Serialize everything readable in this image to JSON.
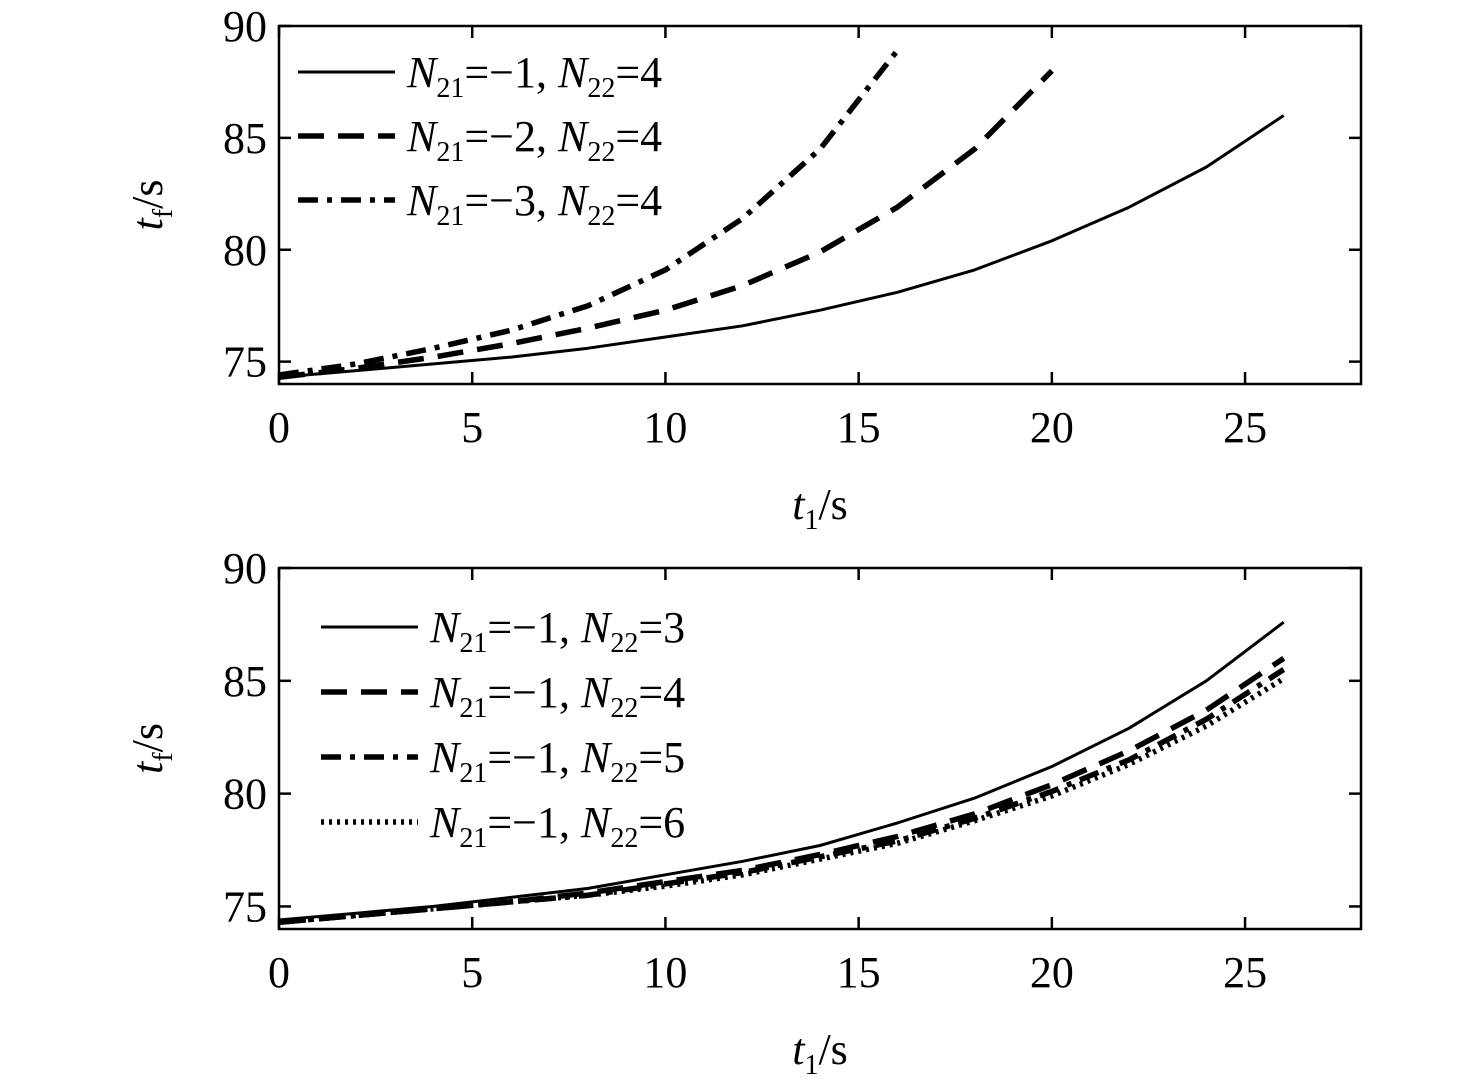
{
  "chart_data": [
    {
      "type": "line",
      "xlabel": {
        "main": "t",
        "sub": "1",
        "unit": "/s"
      },
      "ylabel": {
        "main": "t",
        "sub": "f",
        "unit": "/s"
      },
      "xlim": [
        0,
        28
      ],
      "ylim": [
        74,
        90
      ],
      "xticks": [
        0,
        5,
        10,
        15,
        20,
        25
      ],
      "yticks": [
        75,
        80,
        85,
        90
      ],
      "grid": false,
      "legend_position": "top-left",
      "series": [
        {
          "name": "N21=−1, N22=4",
          "label_parts": [
            "N",
            "21",
            "=−1, ",
            "N",
            "22",
            "=4"
          ],
          "style": "solid",
          "x": [
            0,
            2,
            4,
            6,
            8,
            10,
            12,
            14,
            16,
            18,
            20,
            22,
            24,
            26
          ],
          "y": [
            74.3,
            74.6,
            74.9,
            75.2,
            75.6,
            76.1,
            76.6,
            77.3,
            78.1,
            79.1,
            80.4,
            81.9,
            83.7,
            86.0
          ]
        },
        {
          "name": "N21=−2, N22=4",
          "label_parts": [
            "N",
            "21",
            "=−2, ",
            "N",
            "22",
            "=4"
          ],
          "style": "dashed",
          "x": [
            0,
            2,
            4,
            6,
            8,
            10,
            12,
            14,
            16,
            18,
            20
          ],
          "y": [
            74.3,
            74.7,
            75.2,
            75.8,
            76.5,
            77.3,
            78.4,
            79.9,
            81.9,
            84.5,
            88.0
          ]
        },
        {
          "name": "N21=−3, N22=4",
          "label_parts": [
            "N",
            "21",
            "=−3, ",
            "N",
            "22",
            "=4"
          ],
          "style": "dashdot",
          "x": [
            0,
            2,
            4,
            6,
            8,
            10,
            12,
            14,
            16
          ],
          "y": [
            74.4,
            74.9,
            75.6,
            76.4,
            77.5,
            79.1,
            81.4,
            84.5,
            88.9
          ]
        }
      ]
    },
    {
      "type": "line",
      "xlabel": {
        "main": "t",
        "sub": "1",
        "unit": "/s"
      },
      "ylabel": {
        "main": "t",
        "sub": "f",
        "unit": "/s"
      },
      "xlim": [
        0,
        28
      ],
      "ylim": [
        74,
        90
      ],
      "xticks": [
        0,
        5,
        10,
        15,
        20,
        25
      ],
      "yticks": [
        75,
        80,
        85,
        90
      ],
      "grid": false,
      "legend_position": "top-left",
      "series": [
        {
          "name": "N21=−1, N22=3",
          "label_parts": [
            "N",
            "21",
            "=−1, ",
            "N",
            "22",
            "=3"
          ],
          "style": "solid",
          "x": [
            0,
            2,
            4,
            6,
            8,
            10,
            12,
            14,
            16,
            18,
            20,
            22,
            24,
            26
          ],
          "y": [
            74.4,
            74.7,
            75.0,
            75.4,
            75.8,
            76.4,
            77.0,
            77.7,
            78.7,
            79.8,
            81.2,
            82.9,
            85.0,
            87.6
          ]
        },
        {
          "name": "N21=−1, N22=4",
          "label_parts": [
            "N",
            "21",
            "=−1, ",
            "N",
            "22",
            "=4"
          ],
          "style": "dashed",
          "x": [
            0,
            2,
            4,
            6,
            8,
            10,
            12,
            14,
            16,
            18,
            20,
            22,
            24,
            26
          ],
          "y": [
            74.3,
            74.6,
            74.9,
            75.2,
            75.6,
            76.1,
            76.6,
            77.3,
            78.1,
            79.1,
            80.4,
            81.9,
            83.7,
            86.0
          ]
        },
        {
          "name": "N21=−1, N22=5",
          "label_parts": [
            "N",
            "21",
            "=−1, ",
            "N",
            "22",
            "=5"
          ],
          "style": "dashdot",
          "x": [
            0,
            2,
            4,
            6,
            8,
            10,
            12,
            14,
            16,
            18,
            20,
            22,
            24,
            26
          ],
          "y": [
            74.3,
            74.6,
            74.9,
            75.2,
            75.5,
            76.0,
            76.5,
            77.2,
            77.9,
            78.9,
            80.1,
            81.5,
            83.3,
            85.5
          ]
        },
        {
          "name": "N21=−1, N22=6",
          "label_parts": [
            "N",
            "21",
            "=−1, ",
            "N",
            "22",
            "=6"
          ],
          "style": "dotted",
          "x": [
            0,
            2,
            4,
            6,
            8,
            10,
            12,
            14,
            16,
            18,
            20,
            22,
            24,
            26
          ],
          "y": [
            74.3,
            74.6,
            74.9,
            75.2,
            75.5,
            75.9,
            76.4,
            77.1,
            77.8,
            78.8,
            79.9,
            81.3,
            83.0,
            85.1
          ]
        }
      ]
    }
  ]
}
